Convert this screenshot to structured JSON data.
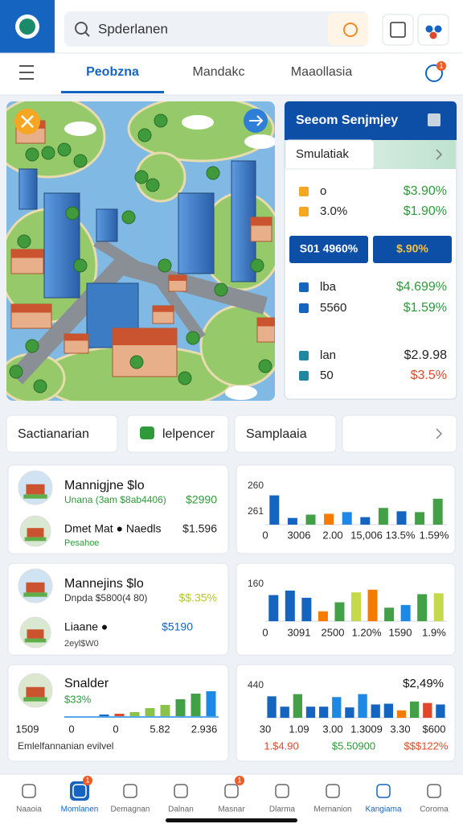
{
  "header": {
    "search": "Spderlanen"
  },
  "tabs": {
    "items": [
      "Peobzna",
      "Mandakc",
      "Maaollasia"
    ],
    "active": 0,
    "badge": "1"
  },
  "panel": {
    "title": "Seeom Senjmjey",
    "subtitle": "Smulatiak",
    "rows": [
      {
        "label": "o",
        "value": "$3.90%",
        "color": "#2e9a3a"
      },
      {
        "label": "3.0%",
        "value": "$1.90%",
        "color": "#2e9a3a"
      }
    ],
    "buttons": [
      "S01 4960%",
      "$.90%"
    ],
    "rows2": [
      {
        "label": "lba",
        "value": "$4.699%",
        "color": "#2e9a3a"
      },
      {
        "label": "5560",
        "value": "$1.59%",
        "color": "#2e9a3a"
      },
      {
        "label": "lan",
        "value": "$2.9.98",
        "color": "#222222"
      },
      {
        "label": "50",
        "value": "$3.5%",
        "color": "#e0482a"
      }
    ]
  },
  "chips": [
    "Sactianarian",
    "lelpencer",
    "Samplaaia"
  ],
  "cards_left": [
    {
      "items": [
        {
          "title": "Mannigjne $lo",
          "sub": "Unana (3am $8ab4406)",
          "value": "$2990",
          "color": "#2e9a3a"
        },
        {
          "title": "Dmet Mat ● Naedls",
          "sub": "Pesahoe",
          "value": "$1.596",
          "color": "#222222"
        }
      ]
    },
    {
      "items": [
        {
          "title": "Mannejins $lo",
          "sub": "Dnpda $5800(4 80)",
          "value": "$$.35%",
          "color": "#b5c92a"
        },
        {
          "title": "Liaane ●",
          "sub": "2eyl$W0",
          "value": "$5190",
          "color": "#1565c0"
        }
      ]
    }
  ],
  "card_trend": {
    "title": "Snalder",
    "value": "$33%",
    "ylim": [
      0,
      100
    ],
    "values": [
      4,
      6,
      10,
      20,
      28,
      42,
      56,
      62
    ],
    "colors": [
      "#1565c0",
      "#e0482a",
      "#8bc34a",
      "#8bc34a",
      "#8bc34a",
      "#43a047",
      "#43a047",
      "#1e88e5"
    ],
    "x_labels": [
      "1509",
      "0",
      "0",
      "5.82",
      "2.936"
    ],
    "footer": "Emlelfannanian evilvel"
  },
  "cards_right": [
    {
      "y_labels": [
        "260",
        "261"
      ],
      "ylim": [
        0,
        100
      ],
      "values": [
        70,
        16,
        24,
        26,
        30,
        18,
        40,
        32,
        30,
        62
      ],
      "colors": [
        "#1565c0",
        "#1565c0",
        "#43a047",
        "#f57c00",
        "#1e88e5",
        "#1565c0",
        "#43a047",
        "#1565c0",
        "#43a047",
        "#43a047"
      ],
      "x_labels": [
        "0",
        "3006",
        "2.00",
        "15,006",
        "13.5%",
        "1.59%"
      ]
    },
    {
      "y_labels": [
        "160"
      ],
      "ylim": [
        0,
        100
      ],
      "values": [
        58,
        68,
        52,
        22,
        42,
        64,
        70,
        30,
        36,
        60,
        62
      ],
      "colors": [
        "#1565c0",
        "#1565c0",
        "#1565c0",
        "#f57c00",
        "#43a047",
        "#c6d94a",
        "#f57c00",
        "#43a047",
        "#1e88e5",
        "#43a047",
        "#c6d94a"
      ],
      "x_labels": [
        "0",
        "3091",
        "2500",
        "1.20%",
        "1590",
        "1.9%"
      ]
    },
    {
      "y_labels": [
        "440"
      ],
      "corner": "$2,49%",
      "ylim": [
        0,
        100
      ],
      "values": [
        58,
        30,
        64,
        30,
        30,
        56,
        28,
        64,
        36,
        38,
        20,
        44,
        40,
        36
      ],
      "colors": [
        "#1565c0",
        "#1565c0",
        "#43a047",
        "#1565c0",
        "#1565c0",
        "#1e88e5",
        "#1565c0",
        "#1e88e5",
        "#1565c0",
        "#1565c0",
        "#f57c00",
        "#43a047",
        "#e0482a",
        "#1565c0"
      ],
      "x_labels": [
        "30",
        "1.09",
        "3.00",
        "1.3009",
        "3.30",
        "$600"
      ],
      "footer": [
        "1.$4.90",
        "$5.50900",
        "$$$122%"
      ]
    }
  ],
  "nav": {
    "items": [
      "Naaoia",
      "Momlanen",
      "Demagnan",
      "Dalnan",
      "Masnar",
      "Dlarma",
      "Mernanion",
      "Kangiama",
      "Coroma"
    ],
    "active": [
      1,
      7
    ],
    "badges": [
      {
        "index": 1,
        "text": "1"
      },
      {
        "index": 4,
        "text": "1"
      }
    ]
  }
}
